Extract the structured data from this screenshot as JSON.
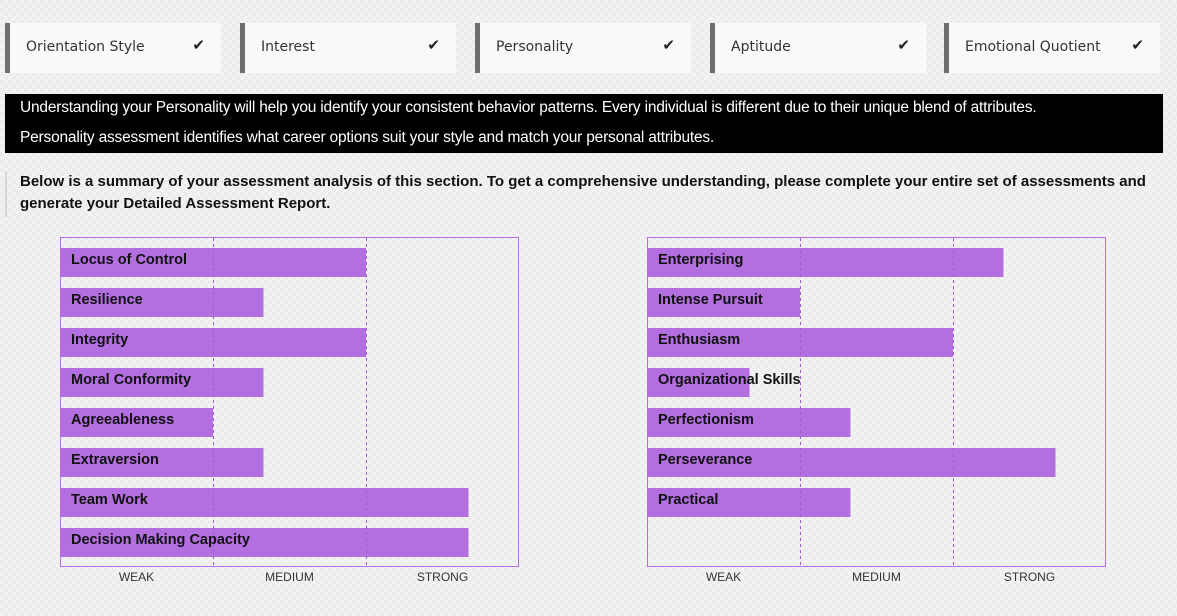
{
  "tabs": [
    {
      "label": "Orientation Style",
      "check": "✔"
    },
    {
      "label": "Interest",
      "check": "✔"
    },
    {
      "label": "Personality",
      "check": "✔"
    },
    {
      "label": "Aptitude",
      "check": "✔"
    },
    {
      "label": "Emotional Quotient",
      "check": "✔"
    }
  ],
  "banner": {
    "line1": "Understanding your Personality will help you identify your consistent behavior patterns. Every individual is different due to their unique blend of attributes.",
    "line2": "Personality assessment identifies what career options suit your style and match your personal attributes."
  },
  "summary": "Below is a summary of your assessment analysis of this section. To get a comprehensive understanding, please complete your entire set of assessments and generate your Detailed Assessment Report.",
  "colors": {
    "bar": "#b36ee0",
    "border": "#b36ee0",
    "divider": "#a35ad6"
  },
  "chart_data": [
    {
      "type": "bar",
      "orientation": "horizontal",
      "categories": [
        "Locus of Control",
        "Resilience",
        "Integrity",
        "Moral Conformity",
        "Agreeableness",
        "Extraversion",
        "Team Work",
        "Decision Making Capacity"
      ],
      "values": [
        2.0,
        1.33,
        2.0,
        1.33,
        1.0,
        1.33,
        2.67,
        2.67
      ],
      "xlim": [
        0,
        3
      ],
      "tick_labels": [
        "WEAK",
        "MEDIUM",
        "STRONG"
      ]
    },
    {
      "type": "bar",
      "orientation": "horizontal",
      "categories": [
        "Enterprising",
        "Intense Pursuit",
        "Enthusiasm",
        "Organizational Skills",
        "Perfectionism",
        "Perseverance",
        "Practical"
      ],
      "values": [
        2.33,
        1.0,
        2.0,
        0.67,
        1.33,
        2.67,
        1.33
      ],
      "xlim": [
        0,
        3
      ],
      "tick_labels": [
        "WEAK",
        "MEDIUM",
        "STRONG"
      ]
    }
  ]
}
